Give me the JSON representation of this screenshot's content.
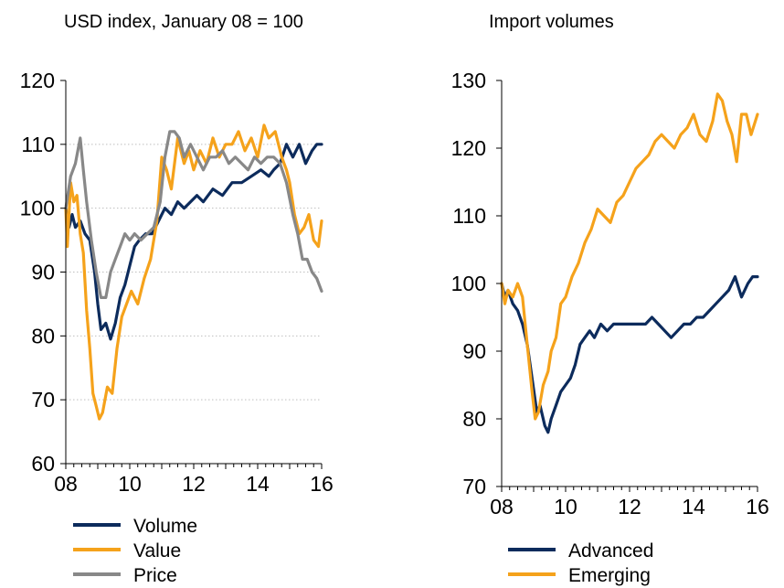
{
  "chart_data": [
    {
      "type": "line",
      "title": "USD index, January 08 = 100",
      "xlabel": "",
      "ylabel": "",
      "xlim": [
        2008,
        2016
      ],
      "ylim": [
        60,
        120
      ],
      "x_ticks": [
        "08",
        "10",
        "12",
        "14",
        "16"
      ],
      "y_ticks": [
        "60",
        "70",
        "80",
        "90",
        "100",
        "110",
        "120"
      ],
      "grid": true,
      "legend_position": "bottom-left",
      "series": [
        {
          "name": "Volume",
          "color": "#0c2b5c",
          "x": [
            2008.0,
            2008.1,
            2008.2,
            2008.3,
            2008.45,
            2008.6,
            2008.75,
            2008.9,
            2009.0,
            2009.1,
            2009.25,
            2009.4,
            2009.55,
            2009.7,
            2009.85,
            2010.0,
            2010.15,
            2010.3,
            2010.5,
            2010.7,
            2010.9,
            2011.1,
            2011.3,
            2011.5,
            2011.7,
            2011.9,
            2012.1,
            2012.3,
            2012.6,
            2012.9,
            2013.2,
            2013.5,
            2013.8,
            2014.1,
            2014.35,
            2014.5,
            2014.7,
            2014.9,
            2015.1,
            2015.3,
            2015.5,
            2015.7,
            2015.85,
            2016.0
          ],
          "values": [
            100,
            97,
            99,
            97,
            98,
            96,
            95,
            90,
            85,
            81,
            82,
            79.5,
            82,
            86,
            88,
            91,
            94,
            95,
            96,
            96,
            98,
            100,
            99,
            101,
            100,
            101,
            102,
            101,
            103,
            102,
            104,
            104,
            105,
            106,
            105,
            106,
            107,
            110,
            108,
            110,
            107,
            109,
            110,
            110
          ]
        },
        {
          "name": "Value",
          "color": "#f5a21b",
          "x": [
            2008.0,
            2008.05,
            2008.15,
            2008.25,
            2008.35,
            2008.45,
            2008.55,
            2008.65,
            2008.75,
            2008.85,
            2008.95,
            2009.05,
            2009.15,
            2009.3,
            2009.45,
            2009.6,
            2009.75,
            2009.9,
            2010.05,
            2010.25,
            2010.45,
            2010.65,
            2010.85,
            2011.0,
            2011.15,
            2011.3,
            2011.5,
            2011.7,
            2011.85,
            2012.0,
            2012.2,
            2012.4,
            2012.6,
            2012.8,
            2013.0,
            2013.2,
            2013.4,
            2013.6,
            2013.8,
            2014.0,
            2014.2,
            2014.35,
            2014.55,
            2014.75,
            2014.9,
            2015.0,
            2015.15,
            2015.3,
            2015.45,
            2015.6,
            2015.75,
            2015.9,
            2016.0
          ],
          "values": [
            100,
            94,
            104,
            101,
            102,
            96,
            93,
            84,
            78,
            71,
            69,
            67,
            68,
            72,
            71,
            78,
            83,
            85,
            87,
            85,
            89,
            92,
            98,
            108,
            106,
            103,
            111,
            107,
            109,
            106,
            109,
            107,
            111,
            108,
            110,
            110,
            112,
            109,
            111,
            108,
            113,
            111,
            112,
            108,
            106,
            104,
            99,
            96,
            97,
            99,
            95,
            94,
            98
          ]
        },
        {
          "name": "Price",
          "color": "#888888",
          "x": [
            2008.0,
            2008.15,
            2008.3,
            2008.45,
            2008.55,
            2008.65,
            2008.8,
            2008.95,
            2009.1,
            2009.25,
            2009.4,
            2009.55,
            2009.7,
            2009.85,
            2010.0,
            2010.15,
            2010.35,
            2010.55,
            2010.75,
            2010.95,
            2011.1,
            2011.25,
            2011.4,
            2011.55,
            2011.7,
            2011.9,
            2012.1,
            2012.3,
            2012.5,
            2012.7,
            2012.9,
            2013.1,
            2013.3,
            2013.5,
            2013.7,
            2013.9,
            2014.1,
            2014.3,
            2014.5,
            2014.7,
            2014.9,
            2015.1,
            2015.25,
            2015.4,
            2015.55,
            2015.7,
            2015.85,
            2016.0
          ],
          "values": [
            100,
            105,
            107,
            111,
            106,
            101,
            95,
            90,
            86,
            86,
            90,
            92,
            94,
            96,
            95,
            96,
            95,
            96,
            97,
            101,
            108,
            112,
            112,
            111,
            108,
            110,
            108,
            106,
            108,
            108,
            109,
            107,
            108,
            107,
            106,
            108,
            107,
            108,
            108,
            107,
            104,
            99,
            96,
            92,
            92,
            90,
            89,
            87
          ]
        }
      ]
    },
    {
      "type": "line",
      "title": "Import volumes",
      "xlabel": "",
      "ylabel": "",
      "xlim": [
        2008,
        2016
      ],
      "ylim": [
        70,
        130
      ],
      "x_ticks": [
        "08",
        "10",
        "12",
        "14",
        "16"
      ],
      "y_ticks": [
        "70",
        "80",
        "90",
        "100",
        "110",
        "120",
        "130"
      ],
      "grid": false,
      "legend_position": "bottom-left",
      "series": [
        {
          "name": "Advanced",
          "color": "#0c2b5c",
          "x": [
            2008.0,
            2008.1,
            2008.2,
            2008.35,
            2008.5,
            2008.65,
            2008.8,
            2008.95,
            2009.1,
            2009.2,
            2009.35,
            2009.45,
            2009.55,
            2009.7,
            2009.85,
            2010.0,
            2010.15,
            2010.3,
            2010.45,
            2010.6,
            2010.75,
            2010.9,
            2011.1,
            2011.3,
            2011.5,
            2011.7,
            2011.9,
            2012.1,
            2012.3,
            2012.5,
            2012.7,
            2012.9,
            2013.1,
            2013.3,
            2013.5,
            2013.7,
            2013.9,
            2014.1,
            2014.3,
            2014.5,
            2014.7,
            2014.9,
            2015.1,
            2015.3,
            2015.5,
            2015.7,
            2015.85,
            2016.0
          ],
          "values": [
            100,
            98,
            99,
            97,
            96,
            94,
            91,
            86,
            81,
            82,
            79,
            78,
            80,
            82,
            84,
            85,
            86,
            88,
            91,
            92,
            93,
            92,
            94,
            93,
            94,
            94,
            94,
            94,
            94,
            94,
            95,
            94,
            93,
            92,
            93,
            94,
            94,
            95,
            95,
            96,
            97,
            98,
            99,
            101,
            98,
            100,
            101,
            101
          ]
        },
        {
          "name": "Emerging",
          "color": "#f5a21b",
          "x": [
            2008.0,
            2008.1,
            2008.2,
            2008.35,
            2008.5,
            2008.65,
            2008.8,
            2008.95,
            2009.05,
            2009.15,
            2009.3,
            2009.45,
            2009.55,
            2009.7,
            2009.85,
            2010.0,
            2010.2,
            2010.4,
            2010.6,
            2010.8,
            2011.0,
            2011.2,
            2011.4,
            2011.6,
            2011.8,
            2012.0,
            2012.2,
            2012.4,
            2012.6,
            2012.8,
            2013.0,
            2013.2,
            2013.4,
            2013.6,
            2013.8,
            2014.0,
            2014.2,
            2014.4,
            2014.6,
            2014.75,
            2014.9,
            2015.05,
            2015.2,
            2015.35,
            2015.5,
            2015.65,
            2015.8,
            2016.0
          ],
          "values": [
            100,
            97,
            99,
            98,
            100,
            98,
            91,
            84,
            80,
            81,
            85,
            87,
            90,
            92,
            97,
            98,
            101,
            103,
            106,
            108,
            111,
            110,
            109,
            112,
            113,
            115,
            117,
            118,
            119,
            121,
            122,
            121,
            120,
            122,
            123,
            125,
            122,
            121,
            124,
            128,
            127,
            124,
            122,
            118,
            125,
            125,
            122,
            125
          ]
        }
      ]
    }
  ]
}
